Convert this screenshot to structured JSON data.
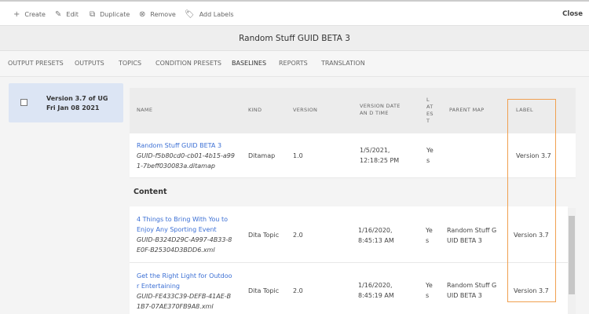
{
  "toolbar": {
    "create": "Create",
    "edit": "Edit",
    "duplicate": "Duplicate",
    "remove": "Remove",
    "add_labels": "Add Labels",
    "close": "Close"
  },
  "title": "Random Stuff GUID BETA 3",
  "tabs": [
    "OUTPUT PRESETS",
    "OUTPUTS",
    "TOPICS",
    "CONDITION PRESETS",
    "BASELINES",
    "REPORTS",
    "TRANSLATION"
  ],
  "active_tab": "BASELINES",
  "baseline": {
    "label": "Version 3.7 of UG Fri Jan 08 2021"
  },
  "columns": {
    "name": "NAME",
    "kind": "KIND",
    "version": "VERSION",
    "date": "VERSION DATE AN D TIME",
    "latest": "L AT ES T",
    "parent": "PARENT MAP",
    "label": "LABEL"
  },
  "map_row": {
    "title": "Random Stuff GUID BETA 3",
    "guid": "GUID-f5b80cd0-cb01-4b15-a991-7beff030083a.ditamap",
    "kind": "Ditamap",
    "version": "1.0",
    "date": "1/5/2021, 12:18:25 PM",
    "latest": "Yes",
    "parent": "",
    "label": "Version 3.7"
  },
  "content_heading": "Content",
  "content_rows": [
    {
      "title": "4 Things to Bring With You to Enjoy Any Sporting Event",
      "guid": "GUID-B324D29C-A997-4B33-8E0F-B25304D3BDD6.xml",
      "kind": "Dita Topic",
      "version": "2.0",
      "date": "1/16/2020, 8:45:13 AM",
      "latest": "Yes",
      "parent": "Random Stuff GUID BETA 3",
      "label": "Version 3.7"
    },
    {
      "title": "Get the Right Light for Outdoor Entertaining",
      "guid": "GUID-FE433C39-DEFB-41AE-B1B7-07AE370FB9A8.xml",
      "kind": "Dita Topic",
      "version": "2.0",
      "date": "1/16/2020, 8:45:19 AM",
      "latest": "Yes",
      "parent": "Random Stuff GUID BETA 3",
      "label": "Version 3.7"
    }
  ],
  "colors": {
    "link": "#3b6fd4",
    "highlight": "#f0a050",
    "selected_card": "#dce5f4"
  }
}
